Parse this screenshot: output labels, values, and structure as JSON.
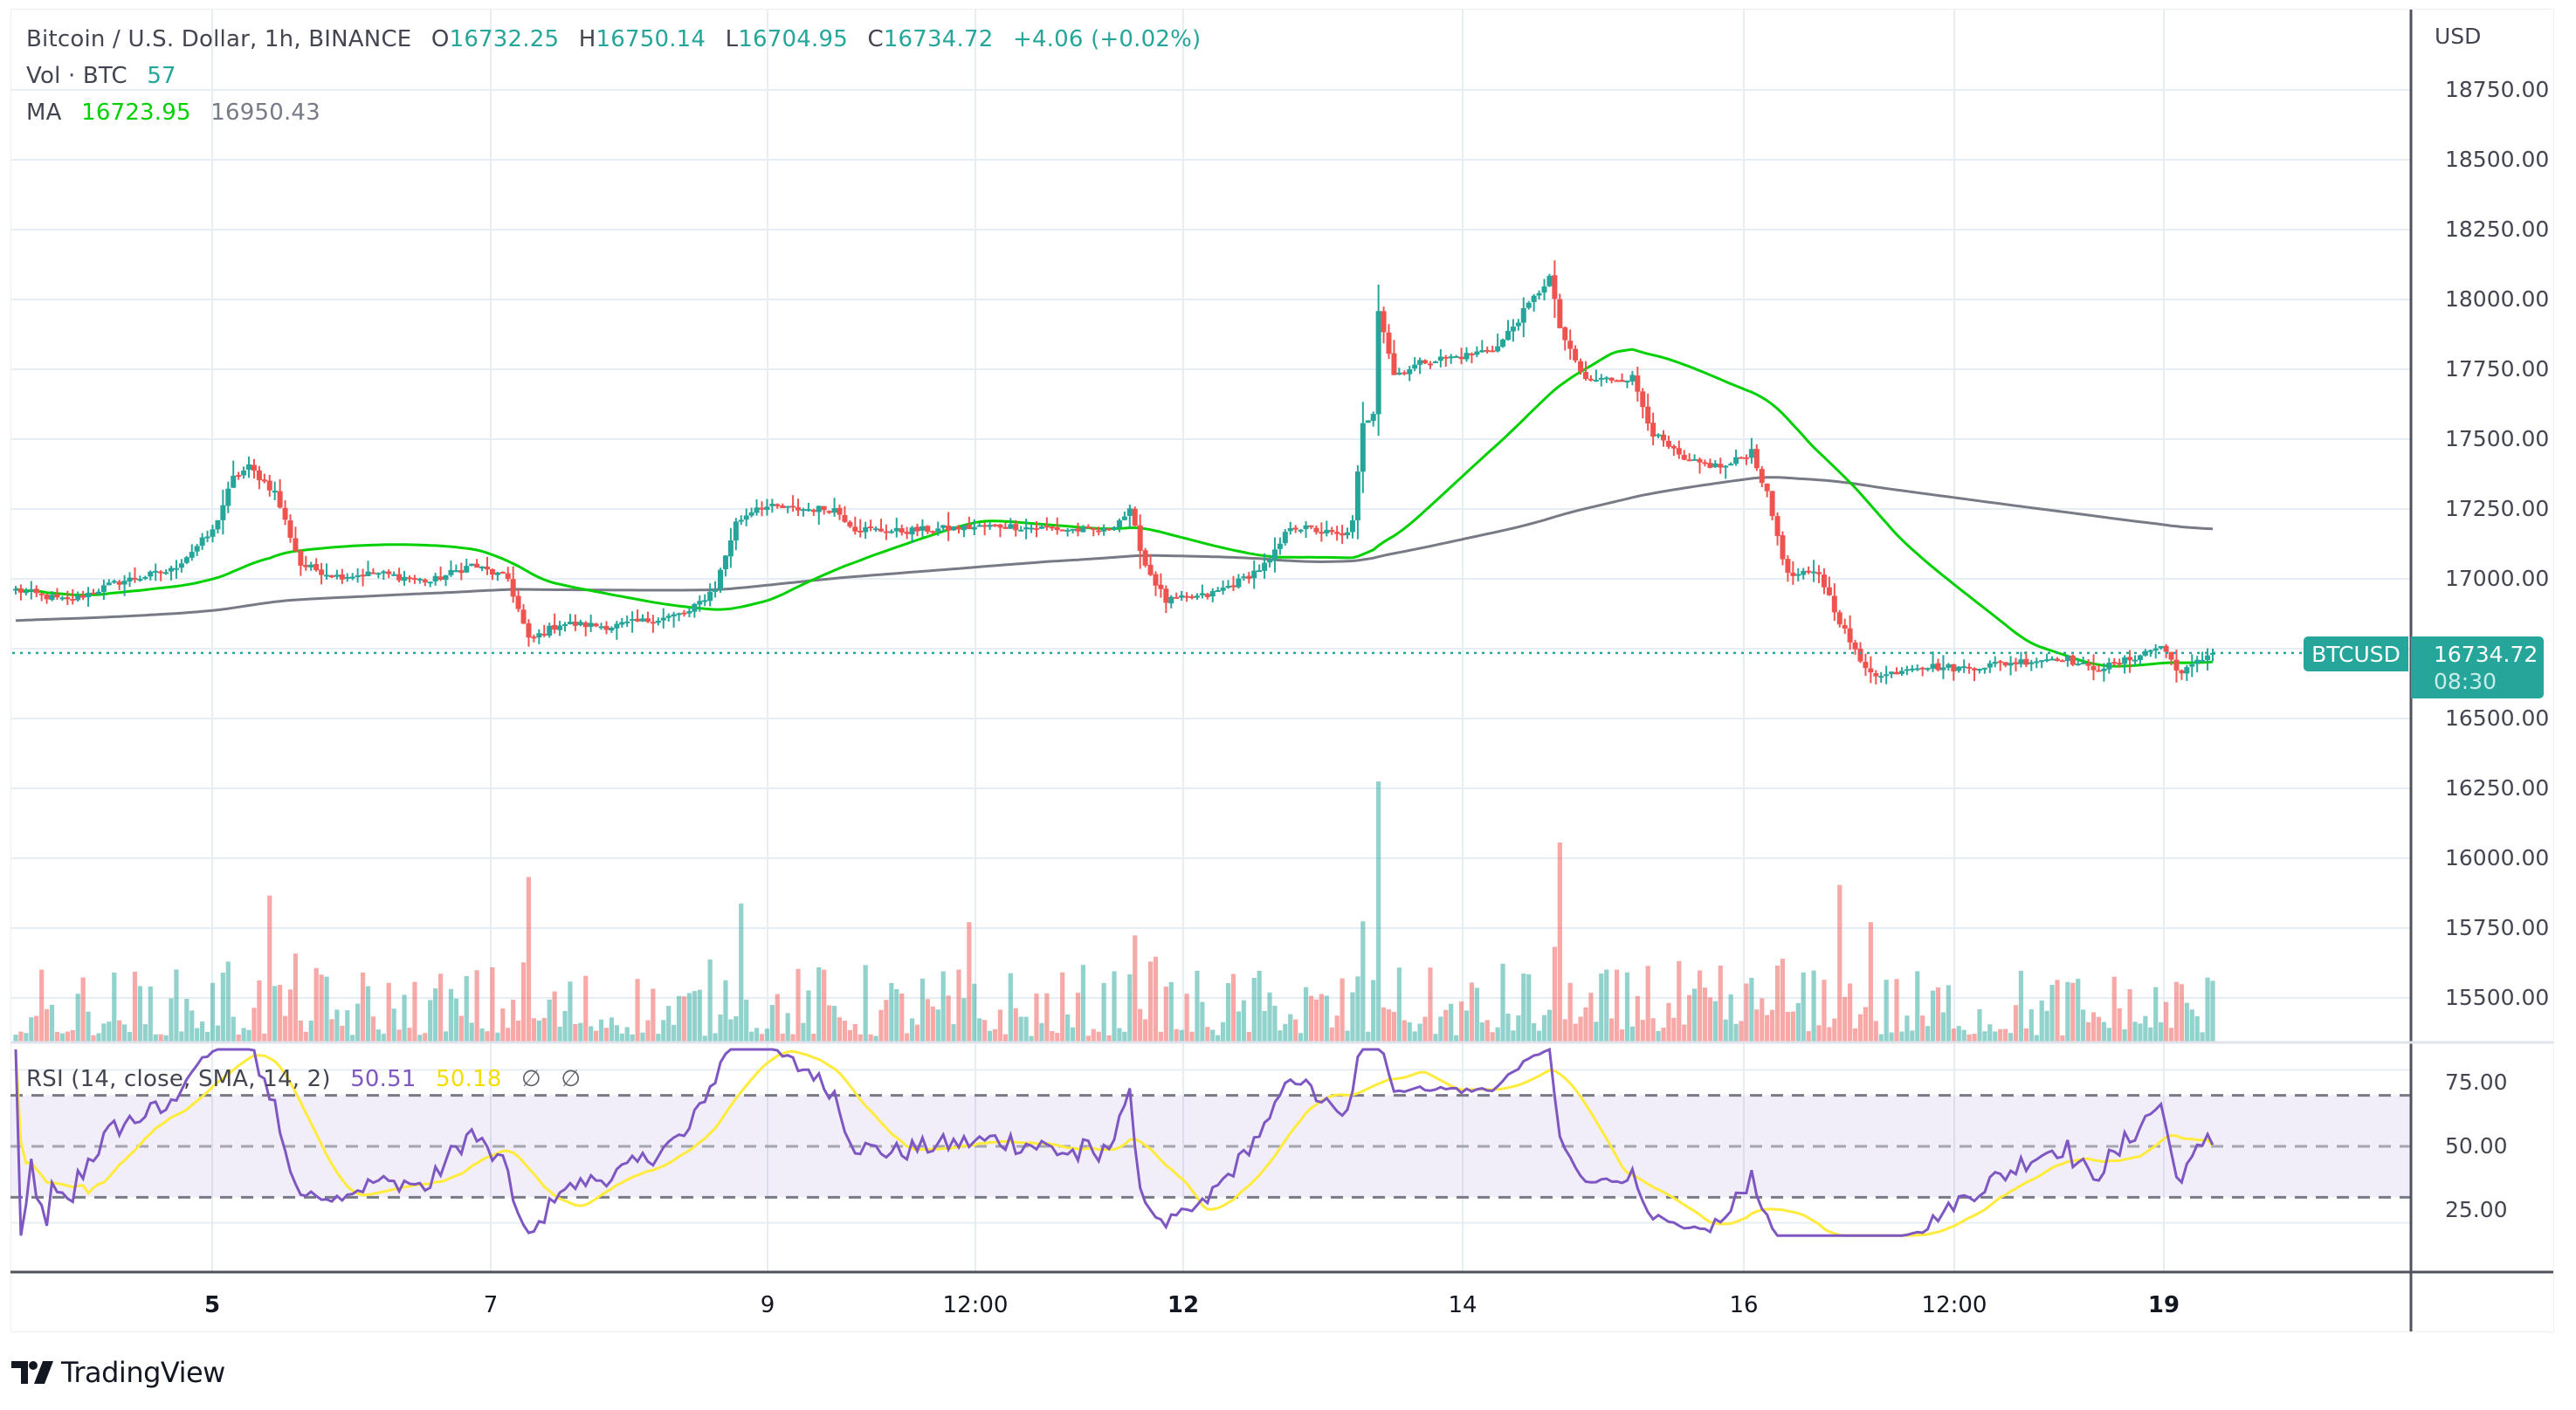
{
  "header": {
    "symbol_title": "Bitcoin / U.S. Dollar, 1h, BINANCE",
    "open_label": "O",
    "open": "16732.25",
    "high_label": "H",
    "high": "16750.14",
    "low_label": "L",
    "low": "16704.95",
    "close_label": "C",
    "close": "16734.72",
    "change": "+4.06 (+0.02%)"
  },
  "volume_legend": {
    "label": "Vol · BTC",
    "value": "57"
  },
  "ma_legend": {
    "label": "MA",
    "value_fast": "16723.95",
    "value_slow": "16950.43"
  },
  "rsi_legend": {
    "label": "RSI (14, close, SMA, 14, 2)",
    "rsi": "50.51",
    "rsi_ma": "50.18",
    "band_upper": "∅",
    "band_lower": "∅"
  },
  "price_axis": {
    "currency": "USD",
    "ticks": [
      "18750.00",
      "18500.00",
      "18250.00",
      "18000.00",
      "17750.00",
      "17500.00",
      "17250.00",
      "17000.00",
      "16500.00",
      "16250.00",
      "16000.00",
      "15750.00",
      "15500.00"
    ]
  },
  "rsi_axis": {
    "ticks": [
      "75.00",
      "50.00",
      "25.00"
    ]
  },
  "time_axis": {
    "labels": [
      {
        "text": "5",
        "day": true
      },
      {
        "text": "7",
        "day": false
      },
      {
        "text": "9",
        "day": false
      },
      {
        "text": "12:00",
        "day": false
      },
      {
        "text": "12",
        "day": true
      },
      {
        "text": "14",
        "day": false
      },
      {
        "text": "16",
        "day": false
      },
      {
        "text": "12:00",
        "day": false
      },
      {
        "text": "19",
        "day": true
      }
    ]
  },
  "price_tag": {
    "symbol": "BTCUSD",
    "price": "16734.72",
    "countdown": "08:30"
  },
  "branding": {
    "logo_text": "TradingView"
  },
  "colors": {
    "up": "#26a69a",
    "down": "#ef5350",
    "ma_fast": "#00d000",
    "ma_slow": "#787b86",
    "rsi": "#7e57c2",
    "rsi_ma": "#ffeb3b",
    "rsi_band": "#7e57c2"
  },
  "chart_data": [
    {
      "type": "candlestick",
      "title": "Bitcoin / U.S. Dollar, 1h, BINANCE",
      "ylabel": "USD",
      "ylim": [
        16200,
        18950
      ],
      "x_ticks": [
        "5",
        "7",
        "9",
        "12:00",
        "12",
        "14",
        "16",
        "12:00",
        "19"
      ],
      "close_path_anchors": [
        [
          0,
          16960
        ],
        [
          10,
          16920
        ],
        [
          20,
          16990
        ],
        [
          30,
          17030
        ],
        [
          38,
          17170
        ],
        [
          42,
          17360
        ],
        [
          45,
          17400
        ],
        [
          50,
          17310
        ],
        [
          55,
          17050
        ],
        [
          62,
          17010
        ],
        [
          70,
          17020
        ],
        [
          80,
          16990
        ],
        [
          88,
          17050
        ],
        [
          95,
          17000
        ],
        [
          99,
          16780
        ],
        [
          105,
          16840
        ],
        [
          115,
          16830
        ],
        [
          125,
          16860
        ],
        [
          130,
          16880
        ],
        [
          135,
          16970
        ],
        [
          139,
          17200
        ],
        [
          143,
          17260
        ],
        [
          150,
          17250
        ],
        [
          158,
          17250
        ],
        [
          162,
          17180
        ],
        [
          170,
          17170
        ],
        [
          180,
          17180
        ],
        [
          190,
          17190
        ],
        [
          200,
          17180
        ],
        [
          210,
          17170
        ],
        [
          215,
          17240
        ],
        [
          218,
          17050
        ],
        [
          222,
          16920
        ],
        [
          230,
          16940
        ],
        [
          236,
          16990
        ],
        [
          242,
          17060
        ],
        [
          246,
          17190
        ],
        [
          252,
          17170
        ],
        [
          256,
          17150
        ],
        [
          258,
          17200
        ],
        [
          260,
          17550
        ],
        [
          262,
          17600
        ],
        [
          263,
          17970
        ],
        [
          266,
          17730
        ],
        [
          272,
          17780
        ],
        [
          280,
          17800
        ],
        [
          286,
          17830
        ],
        [
          292,
          17980
        ],
        [
          296,
          18080
        ],
        [
          298,
          17900
        ],
        [
          300,
          17810
        ],
        [
          303,
          17710
        ],
        [
          312,
          17720
        ],
        [
          316,
          17520
        ],
        [
          322,
          17420
        ],
        [
          330,
          17400
        ],
        [
          335,
          17460
        ],
        [
          338,
          17300
        ],
        [
          342,
          17010
        ],
        [
          348,
          17020
        ],
        [
          352,
          16850
        ],
        [
          356,
          16700
        ],
        [
          360,
          16650
        ],
        [
          366,
          16690
        ],
        [
          375,
          16680
        ],
        [
          385,
          16700
        ],
        [
          395,
          16720
        ],
        [
          400,
          16680
        ],
        [
          405,
          16690
        ],
        [
          410,
          16730
        ],
        [
          414,
          16760
        ],
        [
          418,
          16660
        ],
        [
          424,
          16740
        ]
      ],
      "n_candles": 425,
      "ma_fast_period": 50,
      "ma_slow_period": 200,
      "last": {
        "open": 16732.25,
        "high": 16750.14,
        "low": 16704.95,
        "close": 16734.72,
        "change": 4.06,
        "change_pct": 0.02
      }
    },
    {
      "type": "bar",
      "title": "Volume",
      "ylabel": "BTC",
      "last_value": 57,
      "spike_indices": [
        [
          49,
          0.55
        ],
        [
          99,
          0.62
        ],
        [
          140,
          0.52
        ],
        [
          184,
          0.45
        ],
        [
          216,
          0.4
        ],
        [
          263,
          0.98
        ],
        [
          298,
          0.75
        ],
        [
          352,
          0.59
        ],
        [
          358,
          0.45
        ]
      ]
    },
    {
      "type": "line",
      "title": "RSI (14, close, SMA, 14, 2)",
      "ylim": [
        0,
        100
      ],
      "levels": {
        "upper": 70,
        "middle": 50,
        "lower": 30
      },
      "last_rsi": 50.51,
      "last_rsi_ma": 50.18
    }
  ]
}
